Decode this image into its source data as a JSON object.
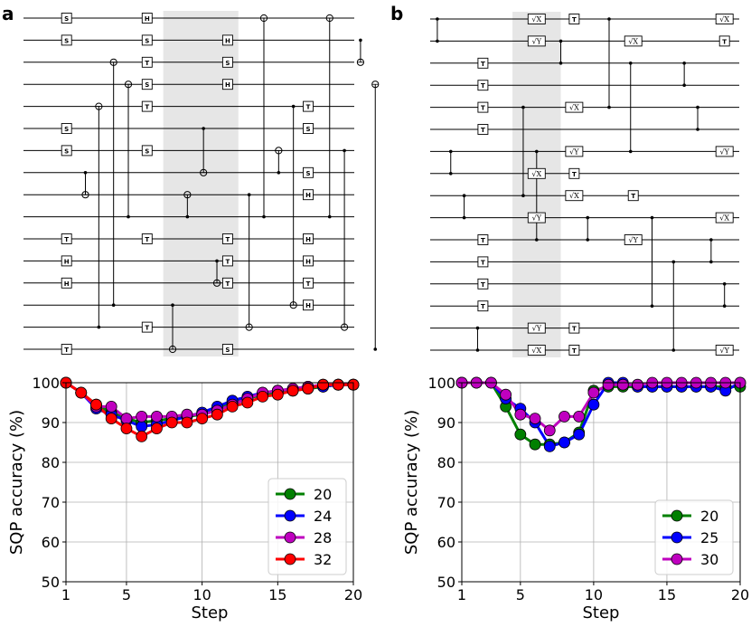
{
  "panels": {
    "a": "a",
    "b": "b"
  },
  "circuit_a": {
    "n_wires": 16,
    "highlight": {
      "from_col": 4.6,
      "to_col": 7.4
    },
    "gates": [
      {
        "w": 0,
        "c": 1,
        "t": "S"
      },
      {
        "w": 1,
        "c": 1,
        "t": "S"
      },
      {
        "w": 5,
        "c": 1,
        "t": "S"
      },
      {
        "w": 6,
        "c": 1,
        "t": "S"
      },
      {
        "w": 10,
        "c": 1,
        "t": "T"
      },
      {
        "w": 11,
        "c": 1,
        "t": "H"
      },
      {
        "w": 12,
        "c": 1,
        "t": "H"
      },
      {
        "w": 15,
        "c": 1,
        "t": "T"
      },
      {
        "w": 0,
        "c": 4,
        "t": "H"
      },
      {
        "w": 1,
        "c": 4,
        "t": "S"
      },
      {
        "w": 2,
        "c": 4,
        "t": "T"
      },
      {
        "w": 3,
        "c": 4,
        "t": "S"
      },
      {
        "w": 4,
        "c": 4,
        "t": "T"
      },
      {
        "w": 6,
        "c": 4,
        "t": "S"
      },
      {
        "w": 10,
        "c": 4,
        "t": "T"
      },
      {
        "w": 14,
        "c": 4,
        "t": "T"
      },
      {
        "w": 1,
        "c": 7,
        "t": "H"
      },
      {
        "w": 2,
        "c": 7,
        "t": "S"
      },
      {
        "w": 3,
        "c": 7,
        "t": "H"
      },
      {
        "w": 10,
        "c": 7,
        "t": "T"
      },
      {
        "w": 11,
        "c": 7,
        "t": "T"
      },
      {
        "w": 12,
        "c": 7,
        "t": "T"
      },
      {
        "w": 15,
        "c": 7,
        "t": "S"
      },
      {
        "w": 4,
        "c": 10,
        "t": "T"
      },
      {
        "w": 5,
        "c": 10,
        "t": "S"
      },
      {
        "w": 7,
        "c": 10,
        "t": "S"
      },
      {
        "w": 8,
        "c": 10,
        "t": "H"
      },
      {
        "w": 10,
        "c": 10,
        "t": "H"
      },
      {
        "w": 11,
        "c": 10,
        "t": "H"
      },
      {
        "w": 12,
        "c": 10,
        "t": "T"
      },
      {
        "w": 13,
        "c": 10,
        "t": "H"
      }
    ],
    "cnots": [
      {
        "c": 1.7,
        "ctrl": 7,
        "targ": 8
      },
      {
        "c": 2.2,
        "ctrl": 14,
        "targ": 4
      },
      {
        "c": 2.75,
        "ctrl": 13,
        "targ": 2
      },
      {
        "c": 3.3,
        "ctrl": 9,
        "targ": 3
      },
      {
        "c": 4.95,
        "ctrl": 13,
        "targ": 15
      },
      {
        "c": 5.5,
        "ctrl": 9,
        "targ": 8
      },
      {
        "c": 6.1,
        "ctrl": 5,
        "targ": 7
      },
      {
        "c": 6.6,
        "ctrl": 11,
        "targ": 12
      },
      {
        "c": 7.8,
        "ctrl": 8,
        "targ": 14
      },
      {
        "c": 8.35,
        "ctrl": 9,
        "targ": 0
      },
      {
        "c": 8.9,
        "ctrl": 7,
        "targ": 6
      },
      {
        "c": 9.45,
        "ctrl": 4,
        "targ": 13
      },
      {
        "c": 10.8,
        "ctrl": 9,
        "targ": 0
      },
      {
        "c": 11.35,
        "ctrl": 6,
        "targ": 14
      },
      {
        "c": 11.95,
        "ctrl": 1,
        "targ": 2
      },
      {
        "c": 12.5,
        "ctrl": 15,
        "targ": 3
      }
    ]
  },
  "circuit_b": {
    "n_wires": 16,
    "highlight": {
      "from_col": 3.1,
      "to_col": 4.9
    },
    "gates": [
      {
        "w": 0,
        "c": 4,
        "t": "√X"
      },
      {
        "w": 1,
        "c": 4,
        "t": "√Y"
      },
      {
        "w": 7,
        "c": 4,
        "t": "√X"
      },
      {
        "w": 9,
        "c": 4,
        "t": "√Y"
      },
      {
        "w": 14,
        "c": 4,
        "t": "√Y"
      },
      {
        "w": 15,
        "c": 4,
        "t": "√X"
      },
      {
        "w": 2,
        "c": 2,
        "t": "T"
      },
      {
        "w": 3,
        "c": 2,
        "t": "T"
      },
      {
        "w": 4,
        "c": 2,
        "t": "T"
      },
      {
        "w": 5,
        "c": 2,
        "t": "T"
      },
      {
        "w": 10,
        "c": 2,
        "t": "T"
      },
      {
        "w": 11,
        "c": 2,
        "t": "T"
      },
      {
        "w": 12,
        "c": 2,
        "t": "T"
      },
      {
        "w": 13,
        "c": 2,
        "t": "T"
      },
      {
        "w": 0,
        "c": 5.4,
        "t": "T"
      },
      {
        "w": 4,
        "c": 5.4,
        "t": "√X"
      },
      {
        "w": 6,
        "c": 5.4,
        "t": "√Y"
      },
      {
        "w": 7,
        "c": 5.4,
        "t": "T"
      },
      {
        "w": 8,
        "c": 5.4,
        "t": "√X"
      },
      {
        "w": 14,
        "c": 5.4,
        "t": "T"
      },
      {
        "w": 15,
        "c": 5.4,
        "t": "T"
      },
      {
        "w": 1,
        "c": 7.6,
        "t": "√X"
      },
      {
        "w": 8,
        "c": 7.6,
        "t": "T"
      },
      {
        "w": 10,
        "c": 7.6,
        "t": "√Y"
      },
      {
        "w": 0,
        "c": 11,
        "t": "√X"
      },
      {
        "w": 1,
        "c": 11,
        "t": "T"
      },
      {
        "w": 6,
        "c": 11,
        "t": "√Y"
      },
      {
        "w": 9,
        "c": 11,
        "t": "√X"
      },
      {
        "w": 15,
        "c": 11,
        "t": "√Y"
      }
    ],
    "czs": [
      {
        "c": 0.3,
        "a": 0,
        "b": 1
      },
      {
        "c": 0.8,
        "a": 6,
        "b": 7
      },
      {
        "c": 1.3,
        "a": 8,
        "b": 9
      },
      {
        "c": 1.8,
        "a": 14,
        "b": 15
      },
      {
        "c": 3.5,
        "a": 4,
        "b": 8
      },
      {
        "c": 4.0,
        "a": 6,
        "b": 10
      },
      {
        "c": 4.9,
        "a": 1,
        "b": 2
      },
      {
        "c": 5.9,
        "a": 9,
        "b": 10
      },
      {
        "c": 6.7,
        "a": 0,
        "b": 4
      },
      {
        "c": 7.5,
        "a": 2,
        "b": 6
      },
      {
        "c": 8.3,
        "a": 9,
        "b": 13
      },
      {
        "c": 9.1,
        "a": 11,
        "b": 15
      },
      {
        "c": 9.5,
        "a": 2,
        "b": 3
      },
      {
        "c": 10.0,
        "a": 4,
        "b": 5
      },
      {
        "c": 10.5,
        "a": 10,
        "b": 11
      },
      {
        "c": 11.0,
        "a": 12,
        "b": 13
      }
    ]
  },
  "chart_data": [
    {
      "type": "line",
      "panel": "a",
      "xlabel": "Step",
      "ylabel": "SQP accuracy (%)",
      "xlim": [
        1,
        20
      ],
      "ylim": [
        50,
        100
      ],
      "xticks": [
        1,
        5,
        10,
        15,
        20
      ],
      "yticks": [
        50,
        60,
        70,
        80,
        90,
        100
      ],
      "legend_position": "bottom-right",
      "grid": true,
      "x": [
        1,
        2,
        3,
        4,
        5,
        6,
        7,
        8,
        9,
        10,
        11,
        12,
        13,
        14,
        15,
        16,
        17,
        18,
        19,
        20
      ],
      "series": [
        {
          "name": "20",
          "color": "#008000",
          "values": [
            100,
            97.5,
            94.5,
            92.5,
            91,
            90,
            90.5,
            91,
            91.5,
            92,
            93.5,
            95,
            96,
            97,
            97.5,
            98,
            98.5,
            99,
            99.5,
            99.5
          ]
        },
        {
          "name": "24",
          "color": "#0000ff",
          "values": [
            100,
            97.5,
            93.5,
            92,
            90.5,
            89,
            89.5,
            90.5,
            91.5,
            92.5,
            94,
            95.5,
            96.5,
            97.5,
            98,
            98.5,
            99,
            99,
            99.5,
            99.5
          ]
        },
        {
          "name": "28",
          "color": "#bf00bf",
          "values": [
            100,
            97.5,
            94,
            94,
            91,
            91.5,
            91.5,
            91.5,
            92,
            92,
            93,
            94.5,
            96,
            97.5,
            98,
            98.5,
            99,
            99.5,
            99.5,
            99.5
          ]
        },
        {
          "name": "32",
          "color": "#ff0000",
          "values": [
            100,
            97.5,
            94.5,
            91,
            88.5,
            86.5,
            88.5,
            90,
            90,
            91,
            92,
            94,
            95,
            96.5,
            97,
            98,
            98.5,
            99.5,
            99.5,
            99.5
          ]
        }
      ]
    },
    {
      "type": "line",
      "panel": "b",
      "xlabel": "Step",
      "ylabel": "SQP accuracy (%)",
      "xlim": [
        1,
        20
      ],
      "ylim": [
        50,
        100
      ],
      "xticks": [
        1,
        5,
        10,
        15,
        20
      ],
      "yticks": [
        50,
        60,
        70,
        80,
        90,
        100
      ],
      "legend_position": "bottom-right",
      "grid": true,
      "x": [
        1,
        2,
        3,
        4,
        5,
        6,
        7,
        8,
        9,
        10,
        11,
        12,
        13,
        14,
        15,
        16,
        17,
        18,
        19,
        20
      ],
      "series": [
        {
          "name": "20",
          "color": "#008000",
          "values": [
            100,
            100,
            100,
            94,
            87,
            84.5,
            84.5,
            85,
            87.5,
            98,
            99,
            99,
            99,
            99,
            99,
            99,
            99,
            99,
            99,
            99
          ]
        },
        {
          "name": "25",
          "color": "#0000ff",
          "values": [
            100,
            100,
            100,
            96,
            93.5,
            90,
            84,
            85,
            87,
            94.5,
            100,
            100,
            99,
            99,
            99,
            99,
            99,
            99,
            98,
            100
          ]
        },
        {
          "name": "30",
          "color": "#bf00bf",
          "values": [
            100,
            100,
            100,
            97,
            92,
            91,
            88,
            91.5,
            91.5,
            97.5,
            99.5,
            99.5,
            99.5,
            100,
            100,
            100,
            100,
            100,
            100,
            100
          ]
        }
      ]
    }
  ]
}
